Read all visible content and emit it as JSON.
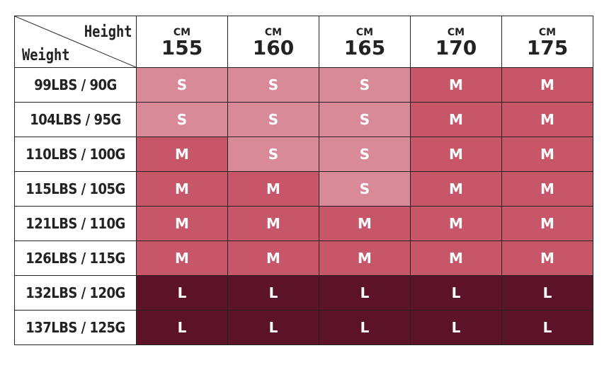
{
  "corner": {
    "height_label": "Height",
    "weight_label": "Weight"
  },
  "unit": "CM",
  "heights": [
    "155",
    "160",
    "165",
    "170",
    "175"
  ],
  "rows": [
    {
      "weight": "99LBS / 90G",
      "sizes": [
        "S",
        "S",
        "S",
        "M",
        "M"
      ]
    },
    {
      "weight": "104LBS / 95G",
      "sizes": [
        "S",
        "S",
        "S",
        "M",
        "M"
      ]
    },
    {
      "weight": "110LBS / 100G",
      "sizes": [
        "M",
        "S",
        "S",
        "M",
        "M"
      ]
    },
    {
      "weight": "115LBS / 105G",
      "sizes": [
        "M",
        "M",
        "S",
        "M",
        "M"
      ]
    },
    {
      "weight": "121LBS / 110G",
      "sizes": [
        "M",
        "M",
        "M",
        "M",
        "M"
      ]
    },
    {
      "weight": "126LBS / 115G",
      "sizes": [
        "M",
        "M",
        "M",
        "M",
        "M"
      ]
    },
    {
      "weight": "132LBS / 120G",
      "sizes": [
        "L",
        "L",
        "L",
        "L",
        "L"
      ]
    },
    {
      "weight": "137LBS / 125G",
      "sizes": [
        "L",
        "L",
        "L",
        "L",
        "L"
      ]
    }
  ],
  "colors": {
    "S": "#d98a99",
    "M": "#c85669",
    "L": "#5c1327"
  }
}
